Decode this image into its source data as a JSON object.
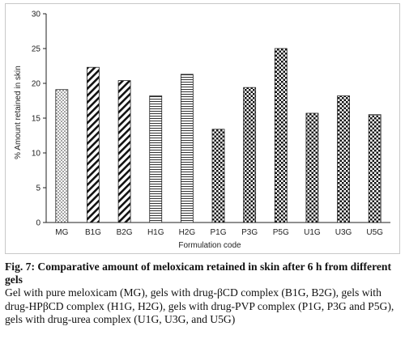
{
  "chart_data": {
    "type": "bar",
    "categories": [
      "MG",
      "B1G",
      "B2G",
      "H1G",
      "H2G",
      "P1G",
      "P3G",
      "P5G",
      "U1G",
      "U3G",
      "U5G"
    ],
    "values": [
      19.1,
      22.3,
      20.4,
      18.2,
      21.3,
      13.4,
      19.4,
      25.0,
      15.7,
      18.2,
      15.5
    ],
    "patterns": [
      "dots",
      "diag-right",
      "diag-right",
      "hstripe",
      "hstripe",
      "check",
      "check",
      "check",
      "check",
      "check",
      "check"
    ],
    "xlabel": "Formulation code",
    "ylabel": "% Amount retained in skin",
    "ylim": [
      0,
      30
    ],
    "yticks": [
      0,
      5,
      10,
      15,
      20,
      25,
      30
    ],
    "grid": false,
    "legend": "none"
  },
  "caption": {
    "fig_label": "Fig. 7",
    "title": ": Comparative amount of meloxicam retained in skin after 6 h from different gels",
    "body": "Gel with pure meloxicam (MG), gels with drug-βCD complex (B1G, B2G), gels with drug-HPβCD complex (H1G, H2G), gels with drug-PVP complex (P1G, P3G and P5G), gels with drug-urea complex (U1G, U3G, and U5G)"
  }
}
